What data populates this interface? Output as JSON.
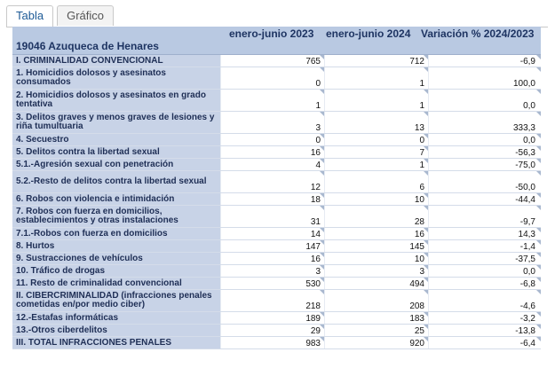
{
  "tabs": [
    {
      "label": "Tabla"
    },
    {
      "label": "Gráfico"
    }
  ],
  "table": {
    "location": "19046 Azuqueca de Henares",
    "columns": [
      "enero-junio 2023",
      "enero-junio 2024",
      "Variación % 2024/2023"
    ],
    "rows": [
      {
        "label": "I. CRIMINALIDAD CONVENCIONAL",
        "v2023": "765",
        "v2024": "712",
        "var": "-6,9"
      },
      {
        "label": "1. Homicidios dolosos y asesinatos consumados",
        "v2023": "0",
        "v2024": "1",
        "var": "100,0"
      },
      {
        "label": "2. Homicidios dolosos y asesinatos en grado tentativa",
        "v2023": "1",
        "v2024": "1",
        "var": "0,0"
      },
      {
        "label": "3. Delitos graves y menos graves de lesiones y riña tumultuaria",
        "v2023": "3",
        "v2024": "13",
        "var": "333,3"
      },
      {
        "label": "4. Secuestro",
        "v2023": "0",
        "v2024": "0",
        "var": "0,0"
      },
      {
        "label": "5. Delitos contra la libertad sexual",
        "v2023": "16",
        "v2024": "7",
        "var": "-56,3"
      },
      {
        "label": "5.1.-Agresión sexual con penetración",
        "v2023": "4",
        "v2024": "1",
        "var": "-75,0"
      },
      {
        "label": "5.2.-Resto de delitos contra la libertad sexual",
        "v2023": "12",
        "v2024": "6",
        "var": "-50,0"
      },
      {
        "label": "6. Robos con violencia e intimidación",
        "v2023": "18",
        "v2024": "10",
        "var": "-44,4"
      },
      {
        "label": "7. Robos con fuerza en domicilios, establecimientos y otras instalaciones",
        "v2023": "31",
        "v2024": "28",
        "var": "-9,7"
      },
      {
        "label": "7.1.-Robos con fuerza en domicilios",
        "v2023": "14",
        "v2024": "16",
        "var": "14,3"
      },
      {
        "label": "8. Hurtos",
        "v2023": "147",
        "v2024": "145",
        "var": "-1,4"
      },
      {
        "label": "9. Sustracciones de vehículos",
        "v2023": "16",
        "v2024": "10",
        "var": "-37,5"
      },
      {
        "label": "10. Tráfico de drogas",
        "v2023": "3",
        "v2024": "3",
        "var": "0,0"
      },
      {
        "label": "11. Resto de criminalidad convencional",
        "v2023": "530",
        "v2024": "494",
        "var": "-6,8"
      },
      {
        "label": "II. CIBERCRIMINALIDAD (infracciones penales cometidas en/por medio ciber)",
        "v2023": "218",
        "v2024": "208",
        "var": "-4,6"
      },
      {
        "label": "12.-Estafas informáticas",
        "v2023": "189",
        "v2024": "183",
        "var": "-3,2"
      },
      {
        "label": "13.-Otros ciberdelitos",
        "v2023": "29",
        "v2024": "25",
        "var": "-13,8"
      },
      {
        "label": "III. TOTAL INFRACCIONES PENALES",
        "v2023": "983",
        "v2024": "920",
        "var": "-6,4"
      }
    ]
  }
}
